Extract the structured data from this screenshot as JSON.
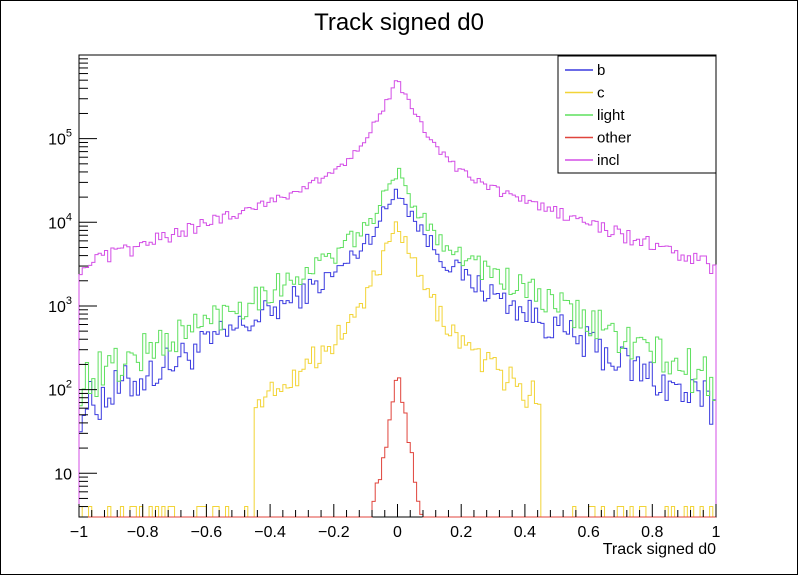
{
  "chart_data": {
    "type": "histogram",
    "title": "Track signed d0",
    "xlabel": "Track signed d0",
    "ylabel": "",
    "xlim": [
      -1,
      1
    ],
    "ylim": [
      3,
      1000000
    ],
    "yscale": "log",
    "bins": 200,
    "grid": false,
    "legend_position": "top-right",
    "x_ticks": [
      "−1",
      "−0.8",
      "−0.6",
      "−0.4",
      "−0.2",
      "0",
      "0.2",
      "0.4",
      "0.6",
      "0.8",
      "1"
    ],
    "y_ticks": [
      {
        "value": 10,
        "base": "10",
        "exp": ""
      },
      {
        "value": 100,
        "base": "10",
        "exp": "2"
      },
      {
        "value": 1000,
        "base": "10",
        "exp": "3"
      },
      {
        "value": 10000,
        "base": "10",
        "exp": "4"
      },
      {
        "value": 100000,
        "base": "10",
        "exp": "5"
      }
    ],
    "series": [
      {
        "name": "b",
        "color": "#3a3adf",
        "peak": 26000,
        "width": 0.048,
        "tail": 0.2,
        "tailw": 0.22,
        "floor": 3.2,
        "noise": 0.22
      },
      {
        "name": "c",
        "color": "#f2d437",
        "peak": 9500,
        "width": 0.04,
        "tail": 0.12,
        "tailw": 0.16,
        "floor": 2.0,
        "noise": 0.24
      },
      {
        "name": "light",
        "color": "#5fe05f",
        "peak": 40000,
        "width": 0.045,
        "tail": 0.22,
        "tailw": 0.23,
        "floor": 3.6,
        "noise": 0.22
      },
      {
        "name": "other",
        "color": "#e0443c",
        "peak": 150,
        "width": 0.02,
        "tail": 0.0,
        "tailw": 0.1,
        "floor": 0.3,
        "noise": 0.3
      },
      {
        "name": "incl",
        "color": "#d34ee6",
        "peak": 500000,
        "width": 0.05,
        "tail": 0.12,
        "tailw": 0.33,
        "floor": 12,
        "noise": 0.08
      }
    ]
  }
}
